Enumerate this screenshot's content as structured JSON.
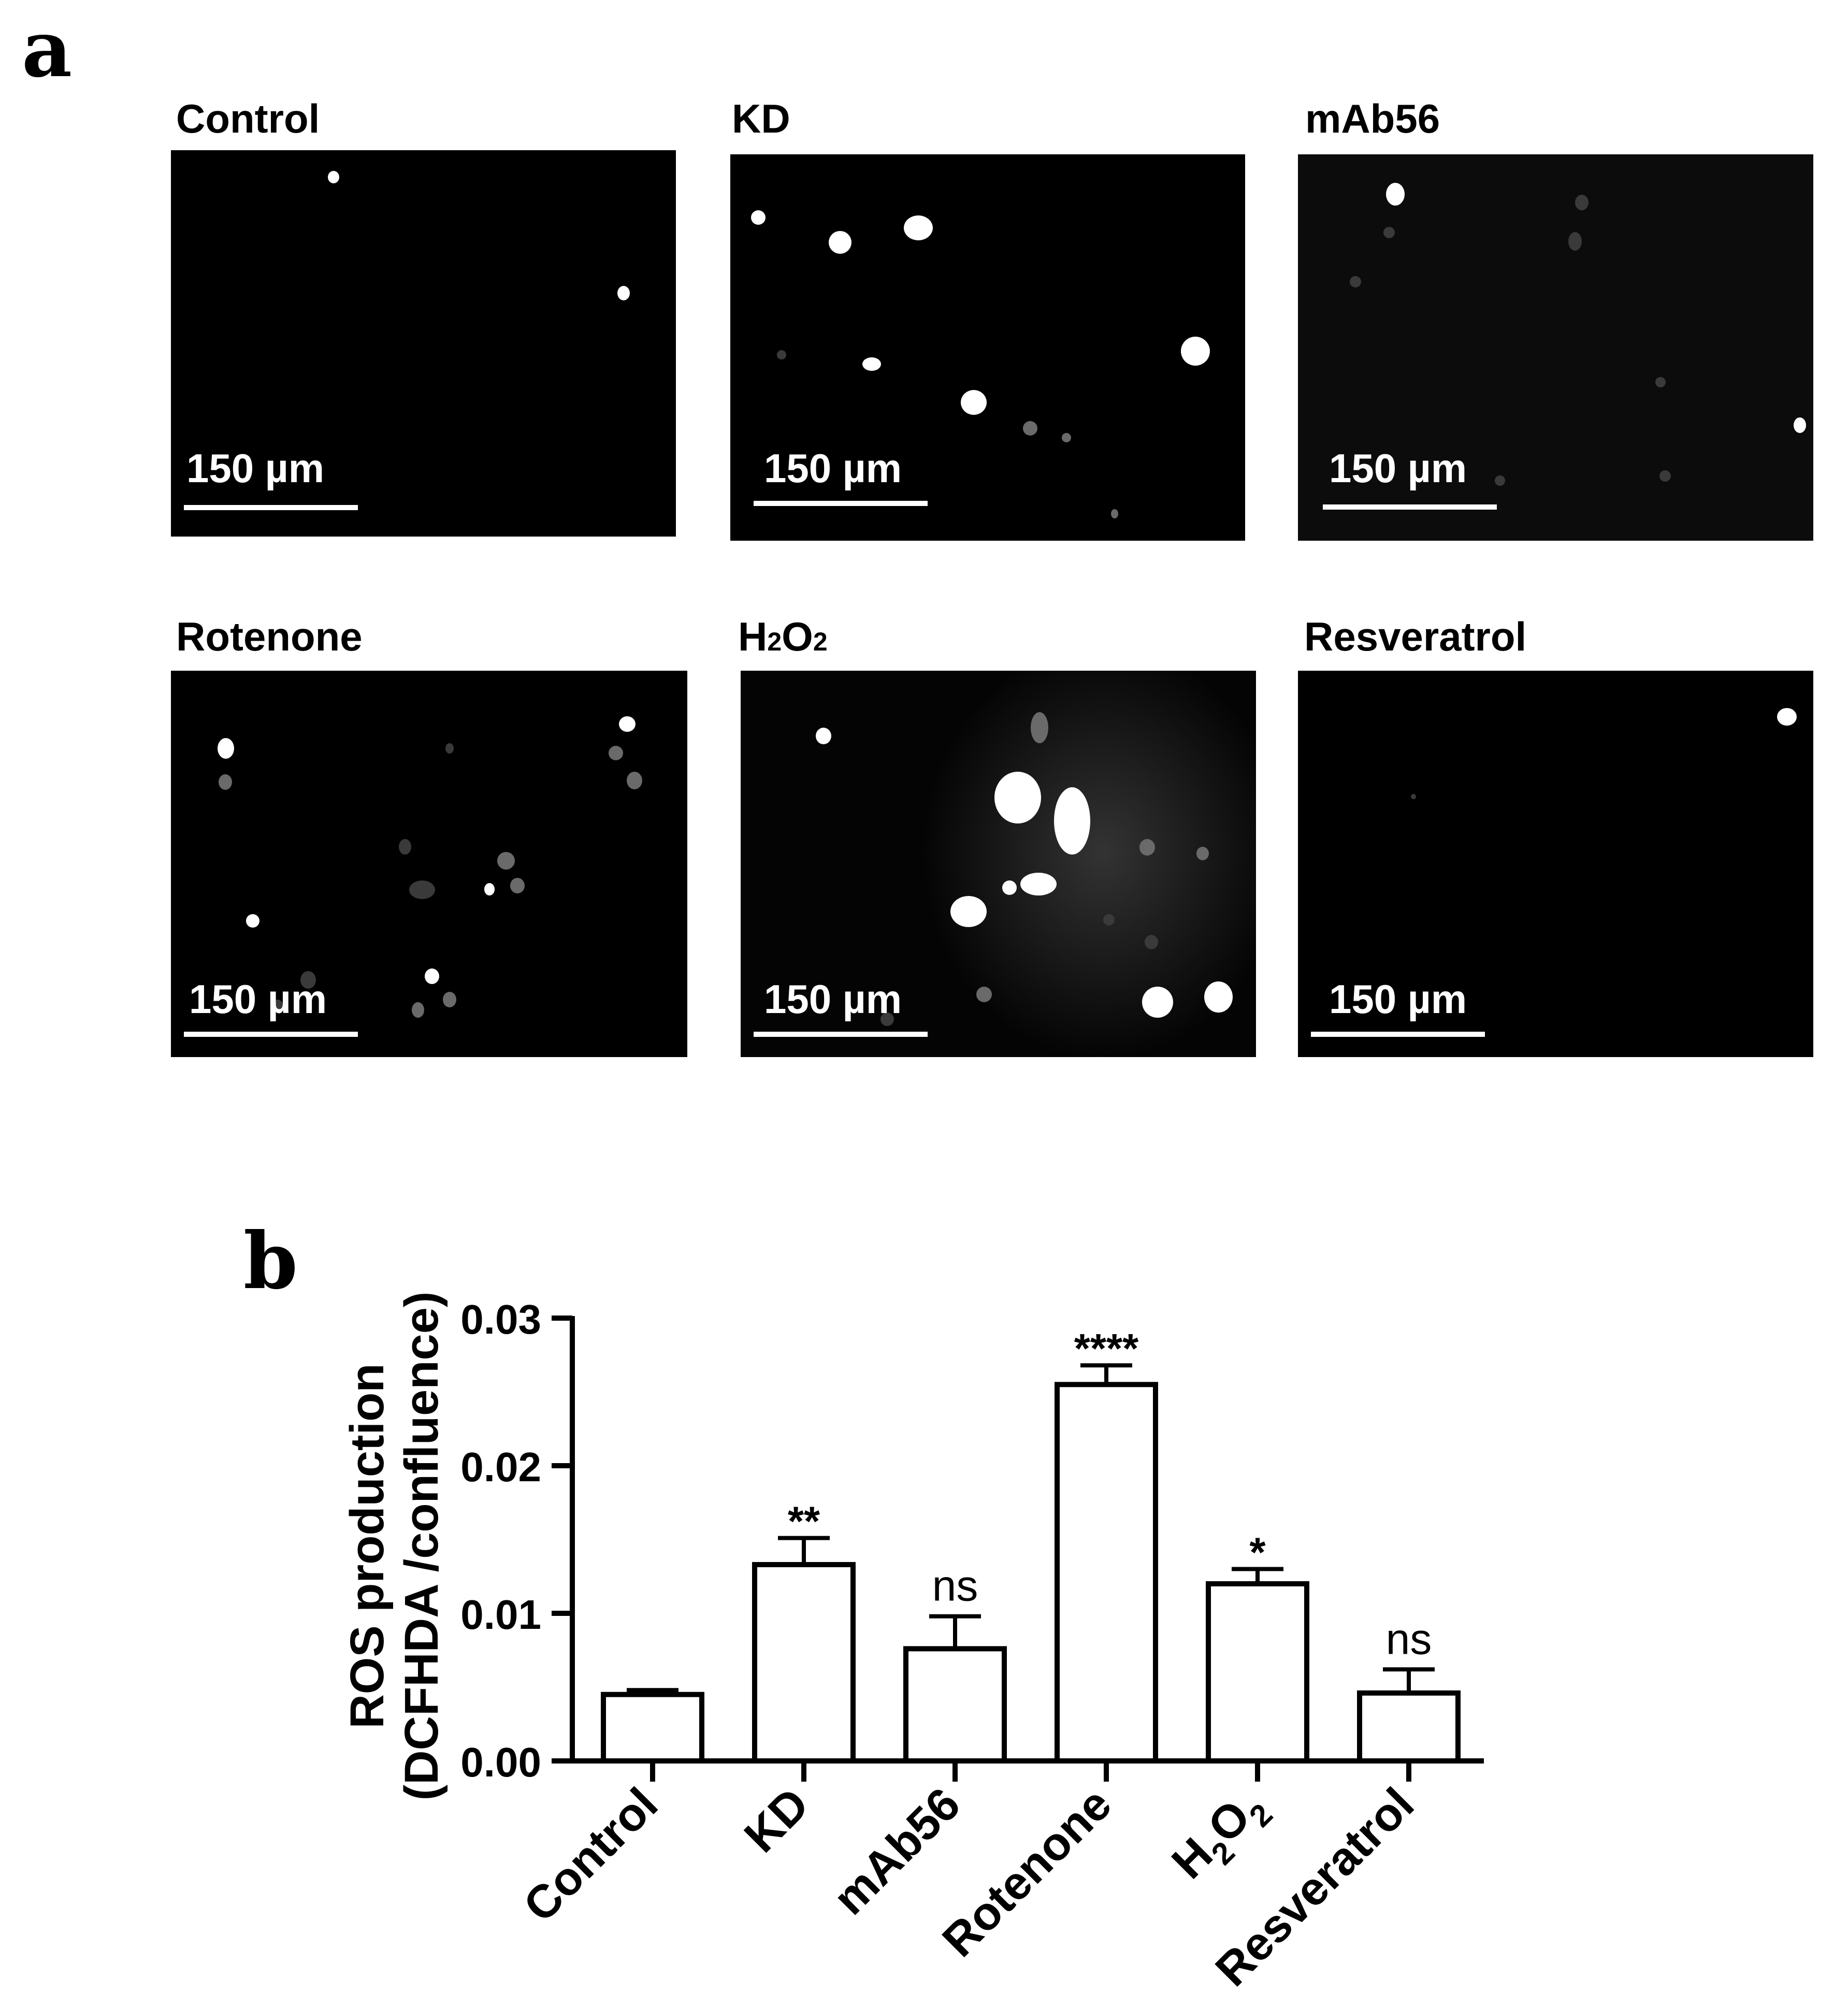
{
  "panels": {
    "a_label": "a",
    "b_label": "b"
  },
  "micrographs": [
    {
      "title": "Control",
      "scale": "150 µm"
    },
    {
      "title": "KD",
      "scale": "150 µm"
    },
    {
      "title": "mAb56",
      "scale": "150 µm"
    },
    {
      "title": "Rotenone",
      "scale": "150 µm"
    },
    {
      "title_main": "H",
      "title_sub1": "2",
      "title_mid": "O",
      "title_sub2": "2",
      "scale": "150 µm"
    },
    {
      "title": "Resveratrol",
      "scale": "150 µm"
    }
  ],
  "chart_data": {
    "type": "bar",
    "ylabel_line1": "ROS production",
    "ylabel_line2": "(DCFHDA /confluence)",
    "ylim": [
      0,
      0.03
    ],
    "yticks": [
      "0.00",
      "0.01",
      "0.02",
      "0.03"
    ],
    "ytick_values": [
      0,
      0.01,
      0.02,
      0.03
    ],
    "categories": [
      "Control",
      "KD",
      "mAb56",
      "Rotenone",
      "H2O2",
      "Resveratrol"
    ],
    "values": [
      0.0045,
      0.0133,
      0.0076,
      0.0255,
      0.012,
      0.0046
    ],
    "errors": [
      0.0003,
      0.0018,
      0.0022,
      0.0013,
      0.001,
      0.0016
    ],
    "annotations": [
      "",
      "**",
      "ns",
      "****",
      "*",
      "ns"
    ],
    "bar_fill": "#ffffff",
    "bar_stroke": "#000000"
  }
}
